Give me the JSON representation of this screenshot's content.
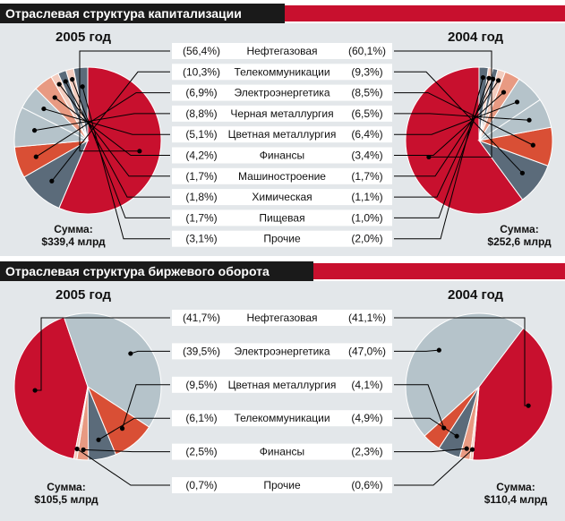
{
  "colors": {
    "red": "#C8102E",
    "slate": "#5B6B7A",
    "orange": "#D94F35",
    "lightgray": "#B5C3CA",
    "salmon": "#E89A82",
    "pale": "#F3CCBE",
    "panel": "#E3E7EA",
    "header": "#1A1A1A",
    "pie_label_link": "#000000"
  },
  "chart_data": [
    {
      "type": "pie",
      "title": "Отраслевая структура капитализации",
      "left_year": "2005 год",
      "right_year": "2004 год",
      "left_total": [
        "Сумма:",
        "$339,4 млрд"
      ],
      "right_total": [
        "Сумма:",
        "$252,6 млрд"
      ],
      "categories": [
        "Нефтегазовая",
        "Телекоммуникации",
        "Электроэнергетика",
        "Черная металлургия",
        "Цветная металлургия",
        "Финансы",
        "Машиностроение",
        "Химическая",
        "Пищевая",
        "Прочие"
      ],
      "slice_colors": [
        "red",
        "slate",
        "orange",
        "lightgray",
        "lightgray",
        "salmon",
        "pale",
        "slate",
        "pale",
        "slate"
      ],
      "series": [
        {
          "name": "2005 год",
          "values": [
            56.4,
            10.3,
            6.9,
            8.8,
            5.1,
            4.2,
            1.7,
            1.8,
            1.7,
            3.1
          ],
          "labels": [
            "(56,4%)",
            "(10,3%)",
            "(6,9%)",
            "(8,8%)",
            "(5,1%)",
            "(4,2%)",
            "(1,7%)",
            "(1,8%)",
            "(1,7%)",
            "(3,1%)"
          ]
        },
        {
          "name": "2004 год",
          "values": [
            60.1,
            9.3,
            8.5,
            6.5,
            6.4,
            3.4,
            1.7,
            1.1,
            1.0,
            2.0
          ],
          "labels": [
            "(60,1%)",
            "(9,3%)",
            "(8,5%)",
            "(6,5%)",
            "(6,4%)",
            "(3,4%)",
            "(1,7%)",
            "(1,1%)",
            "(1,0%)",
            "(2,0%)"
          ]
        }
      ]
    },
    {
      "type": "pie",
      "title": "Отраслевая структура биржевого оборота",
      "left_year": "2005 год",
      "right_year": "2004 год",
      "left_total": [
        "Сумма:",
        "$105,5 млрд"
      ],
      "right_total": [
        "Сумма:",
        "$110,4 млрд"
      ],
      "categories": [
        "Нефтегазовая",
        "Электроэнергетика",
        "Цветная металлургия",
        "Телекоммуникации",
        "Финансы",
        "Прочие"
      ],
      "slice_colors": [
        "red",
        "lightgray",
        "orange",
        "slate",
        "salmon",
        "pale"
      ],
      "series": [
        {
          "name": "2005 год",
          "values": [
            41.7,
            39.5,
            9.5,
            6.1,
            2.5,
            0.7
          ],
          "labels": [
            "(41,7%)",
            "(39,5%)",
            "(9,5%)",
            "(6,1%)",
            "(2,5%)",
            "(0,7%)"
          ]
        },
        {
          "name": "2004 год",
          "values": [
            41.1,
            47.0,
            4.1,
            4.9,
            2.3,
            0.6
          ],
          "labels": [
            "(41,1%)",
            "(47,0%)",
            "(4,1%)",
            "(4,9%)",
            "(2,3%)",
            "(0,6%)"
          ]
        }
      ]
    }
  ]
}
